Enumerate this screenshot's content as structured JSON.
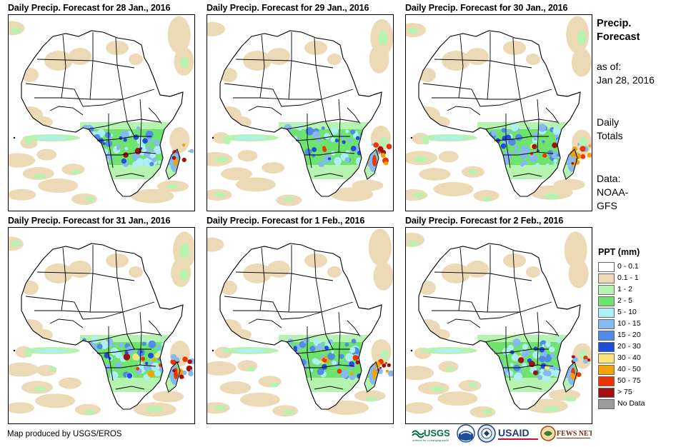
{
  "panels": [
    {
      "title": "Daily Precip. Forecast for 28 Jan., 2016"
    },
    {
      "title": "Daily Precip. Forecast for 29 Jan., 2016"
    },
    {
      "title": "Daily Precip. Forecast for 30 Jan., 2016"
    },
    {
      "title": "Daily Precip. Forecast for 31 Jan., 2016"
    },
    {
      "title": "Daily Precip. Forecast for 1 Feb., 2016"
    },
    {
      "title": "Daily Precip. Forecast for 2 Feb., 2016"
    }
  ],
  "sidebar": {
    "title_line1": "Precip.",
    "title_line2": "Forecast",
    "asof_label": "as of:",
    "asof_date": "Jan 28, 2016",
    "totals_line1": "Daily",
    "totals_line2": "Totals",
    "data_line1": "Data:",
    "data_line2": "NOAA-",
    "data_line3": "GFS"
  },
  "legend": {
    "title": "PPT (mm)",
    "items": [
      {
        "label": "0 - 0.1",
        "color": "#ffffff"
      },
      {
        "label": "0.1 - 1",
        "color": "#ecd9b5"
      },
      {
        "label": "1 - 2",
        "color": "#b6f2b0"
      },
      {
        "label": "2 - 5",
        "color": "#6ee46e"
      },
      {
        "label": "5 - 10",
        "color": "#aeeef5"
      },
      {
        "label": "10 - 15",
        "color": "#86b9f0"
      },
      {
        "label": "15 - 20",
        "color": "#4e8ce8"
      },
      {
        "label": "20 - 30",
        "color": "#1f4fd8"
      },
      {
        "label": "30 - 40",
        "color": "#fde37a"
      },
      {
        "label": "40 - 50",
        "color": "#f5a100"
      },
      {
        "label": "50 - 75",
        "color": "#ee3300"
      },
      {
        "label": "> 75",
        "color": "#a01010"
      },
      {
        "label": "No Data",
        "color": "#9b9b9b"
      }
    ]
  },
  "credit": "Map produced by USGS/EROS",
  "logos": {
    "usgs": "USGS",
    "usgs_tagline": "science for a changing world",
    "usaid": "USAID",
    "fewsnet": "FEWS NET"
  }
}
